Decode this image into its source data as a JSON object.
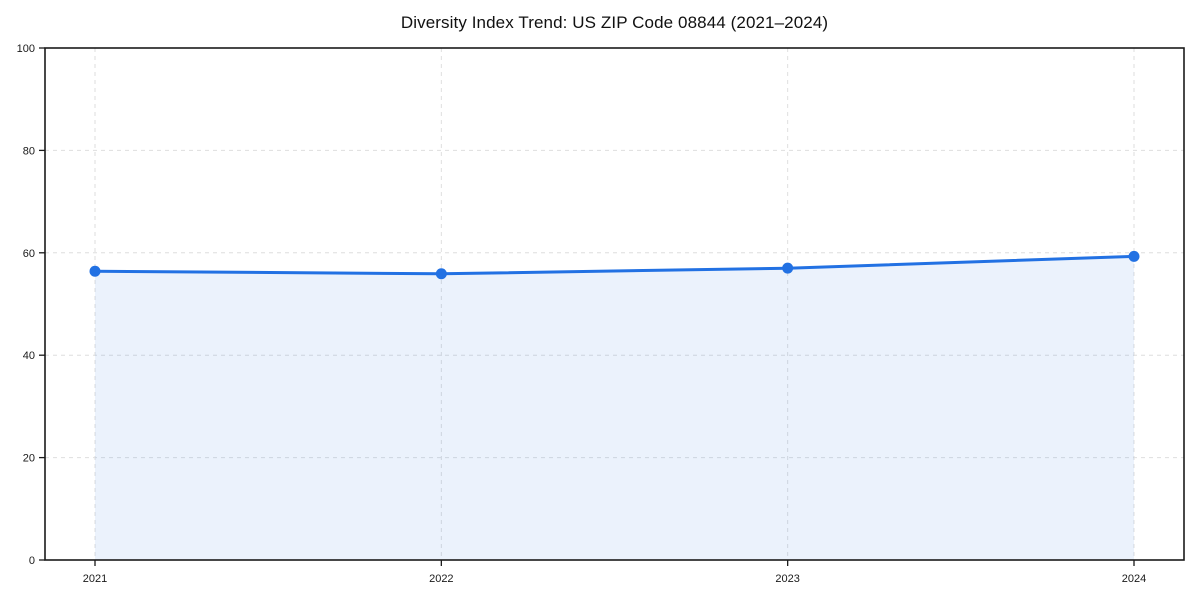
{
  "chart_data": {
    "type": "area",
    "title": "Diversity Index Trend: US ZIP Code 08844 (2021–2024)",
    "x": [
      "2021",
      "2022",
      "2023",
      "2024"
    ],
    "series": [
      {
        "name": "Diversity Index",
        "values": [
          56.4,
          55.9,
          57.0,
          59.3
        ]
      }
    ],
    "xlabel": "",
    "ylabel": "",
    "ylim": [
      0,
      100
    ],
    "yticks": [
      0,
      20,
      40,
      60,
      80,
      100
    ],
    "grid": true,
    "grid_style": "dashed",
    "legend": "none",
    "colors": {
      "line": "#2271e3",
      "marker": "#2271e3",
      "fill": "rgba(34,113,227,0.09)",
      "gridline": "#dedede",
      "spine": "#1a1a1a",
      "tick_label": "#1a1a1a",
      "background": "#ffffff"
    }
  }
}
